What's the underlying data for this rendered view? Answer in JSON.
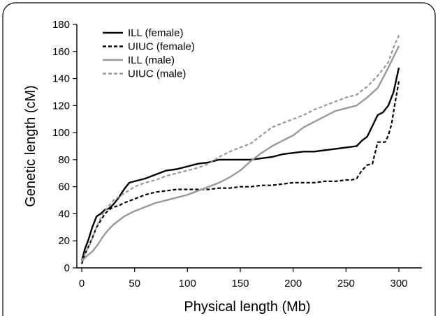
{
  "chart_data": {
    "type": "line",
    "xlabel": "Physical length (Mb)",
    "ylabel": "Genetic length (cM)",
    "xlim": [
      0,
      320
    ],
    "ylim": [
      0,
      180
    ],
    "x_ticks": [
      0,
      50,
      100,
      150,
      200,
      250,
      300
    ],
    "y_ticks": [
      0,
      20,
      40,
      60,
      80,
      100,
      120,
      140,
      160,
      180
    ],
    "grid": false,
    "legend_position": "top-left",
    "series": [
      {
        "name": "ILL (female)",
        "color": "#000000",
        "dash": "solid",
        "x": [
          0,
          3,
          6,
          10,
          14,
          18,
          22,
          26,
          30,
          35,
          40,
          45,
          50,
          60,
          70,
          80,
          90,
          100,
          110,
          120,
          130,
          140,
          150,
          160,
          170,
          180,
          190,
          200,
          210,
          220,
          230,
          240,
          250,
          260,
          265,
          270,
          275,
          280,
          285,
          290,
          295,
          300
        ],
        "y": [
          5,
          14,
          20,
          30,
          38,
          40,
          43,
          44,
          47,
          52,
          58,
          63,
          64,
          66,
          69,
          72,
          73,
          75,
          77,
          78,
          80,
          80,
          80,
          80,
          81,
          82,
          84,
          85,
          86,
          86,
          87,
          88,
          89,
          90,
          94,
          97,
          105,
          113,
          115,
          120,
          130,
          148
        ]
      },
      {
        "name": "UIUC (female)",
        "color": "#000000",
        "dash": "dashed",
        "x": [
          0,
          3,
          6,
          10,
          14,
          18,
          22,
          26,
          30,
          35,
          40,
          50,
          60,
          70,
          80,
          90,
          100,
          110,
          120,
          130,
          140,
          150,
          160,
          170,
          180,
          190,
          200,
          210,
          220,
          230,
          240,
          250,
          255,
          260,
          265,
          270,
          275,
          280,
          283,
          287,
          290,
          293,
          296,
          300
        ],
        "y": [
          3,
          10,
          15,
          22,
          30,
          35,
          40,
          43,
          45,
          46,
          48,
          51,
          54,
          56,
          57,
          58,
          58,
          58,
          58,
          59,
          59,
          60,
          60,
          61,
          61,
          62,
          63,
          63,
          63,
          64,
          64,
          65,
          65,
          66,
          72,
          76,
          77,
          93,
          93,
          93,
          98,
          106,
          120,
          138
        ]
      },
      {
        "name": "ILL (male)",
        "color": "#999999",
        "dash": "solid",
        "x": [
          0,
          5,
          10,
          15,
          20,
          25,
          30,
          40,
          50,
          60,
          70,
          80,
          90,
          100,
          110,
          120,
          130,
          140,
          150,
          160,
          170,
          180,
          190,
          200,
          210,
          220,
          230,
          240,
          250,
          260,
          270,
          280,
          290,
          300
        ],
        "y": [
          5,
          9,
          12,
          17,
          23,
          28,
          32,
          38,
          42,
          45,
          48,
          50,
          52,
          54,
          57,
          60,
          63,
          67,
          72,
          79,
          85,
          90,
          94,
          98,
          104,
          108,
          112,
          116,
          118,
          120,
          126,
          133,
          148,
          164
        ]
      },
      {
        "name": "UIUC (male)",
        "color": "#999999",
        "dash": "dashed",
        "x": [
          0,
          4,
          8,
          12,
          16,
          20,
          25,
          30,
          40,
          50,
          60,
          70,
          80,
          90,
          100,
          110,
          120,
          130,
          140,
          150,
          160,
          170,
          180,
          190,
          200,
          210,
          220,
          230,
          240,
          250,
          260,
          270,
          280,
          290,
          295,
          300
        ],
        "y": [
          5,
          12,
          18,
          26,
          34,
          40,
          45,
          50,
          55,
          60,
          63,
          65,
          68,
          70,
          72,
          74,
          77,
          82,
          86,
          89,
          92,
          98,
          104,
          107,
          110,
          113,
          117,
          120,
          123,
          126,
          128,
          134,
          142,
          152,
          163,
          172
        ]
      }
    ]
  }
}
